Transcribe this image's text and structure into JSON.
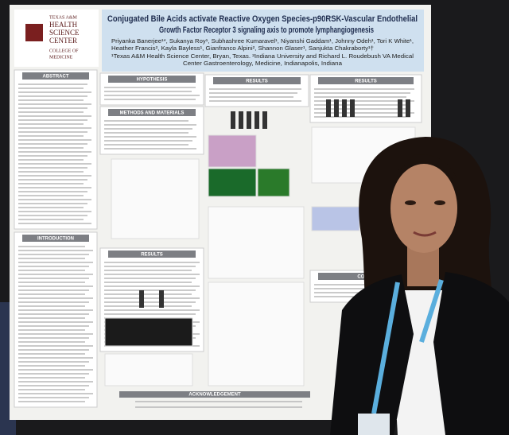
{
  "poster": {
    "logo": {
      "line1": "TEXAS A&M",
      "line2": "HEALTH",
      "line3": "SCIENCE",
      "line4": "CENTER",
      "line5": "COLLEGE OF",
      "line6": "MEDICINE"
    },
    "title_lines": [
      "Conjugated Bile Acids activate Reactive Oxygen Species-p90RSK-Vascular Endothelial",
      "Growth Factor Receptor 3 signaling axis to promote lymphangiogenesis"
    ],
    "author_lines": [
      "Priyanka Banerjee¹*, Sukanya Roy¹, Subhashree Kumaravel¹, Niyanshi Gaddam¹, Johnny Odeh¹, Tori K White¹,",
      "Heather Francis², Kayla Bayless¹, Gianfranco Alpini², Shannon Glaser¹, Sanjukta Chakraborty¹†",
      "¹Texas A&M Health Science Center, Bryan, Texas. ²Indiana University and Richard L. Roudebush VA Medical",
      "Center Gastroenterology, Medicine, Indianapolis, Indiana"
    ],
    "sections": {
      "abstract": "ABSTRACT",
      "introduction": "INTRODUCTION",
      "hypothesis": "HYPOTHESIS",
      "methods": "METHODS AND MATERIALS",
      "results_1": "RESULTS",
      "results_2": "RESULTS",
      "results_3": "RESULTS",
      "conclusion": "CONCL",
      "acknowledgement": "ACKNOWLEDGEMENT"
    }
  }
}
